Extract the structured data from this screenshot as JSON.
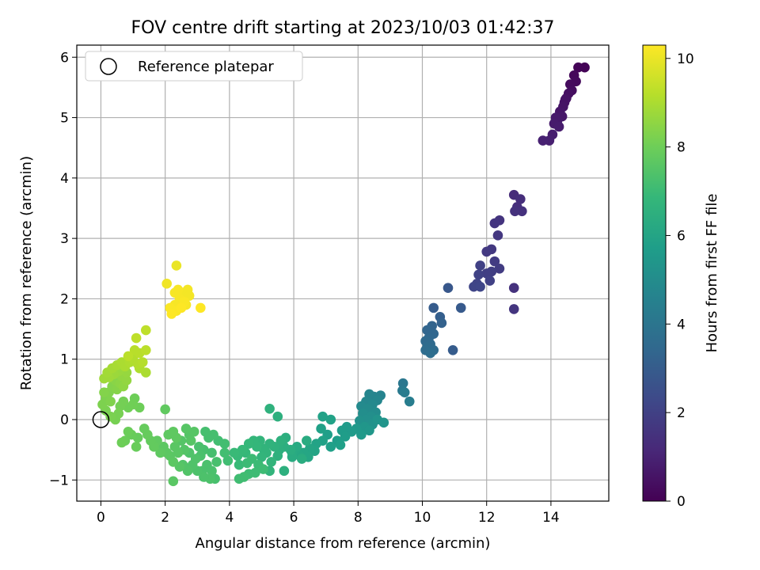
{
  "chart_data": {
    "type": "scatter",
    "title": "FOV centre drift starting at 2023/10/03 01:42:37",
    "xlabel": "Angular distance from reference (arcmin)",
    "ylabel": "Rotation from reference (arcmin)",
    "xlim": [
      -0.75,
      15.8
    ],
    "ylim": [
      -1.35,
      6.2
    ],
    "xticks": [
      0,
      2,
      4,
      6,
      8,
      10,
      12,
      14
    ],
    "yticks": [
      -1,
      0,
      1,
      2,
      3,
      4,
      5,
      6
    ],
    "xtick_labels": [
      "0",
      "2",
      "4",
      "6",
      "8",
      "10",
      "12",
      "14"
    ],
    "ytick_labels": [
      "−1",
      "0",
      "1",
      "2",
      "3",
      "4",
      "5",
      "6"
    ],
    "grid": true,
    "legend": {
      "placement": "upper-left",
      "entries": [
        "Reference platepar"
      ]
    },
    "reference_point": {
      "x": 0,
      "y": 0,
      "marker": "open-circle"
    },
    "colorbar": {
      "label": "Hours from first FF file",
      "min": 0,
      "max": 10.3,
      "ticks": [
        0,
        2,
        4,
        6,
        8,
        10
      ],
      "tick_labels": [
        "0",
        "2",
        "4",
        "6",
        "8",
        "10"
      ],
      "colormap": "viridis"
    },
    "colormap_stops": [
      "#440154",
      "#482878",
      "#3e4989",
      "#31688e",
      "#26828e",
      "#1f9e89",
      "#35b779",
      "#6ece58",
      "#b5de2b",
      "#fde725"
    ],
    "points": [
      [
        15.05,
        5.83,
        0.05
      ],
      [
        14.85,
        5.83,
        0.1
      ],
      [
        14.72,
        5.7,
        0.2
      ],
      [
        14.78,
        5.6,
        0.25
      ],
      [
        14.6,
        5.55,
        0.3
      ],
      [
        14.65,
        5.45,
        0.35
      ],
      [
        14.55,
        5.4,
        0.4
      ],
      [
        14.48,
        5.32,
        0.45
      ],
      [
        14.42,
        5.25,
        0.5
      ],
      [
        14.38,
        5.18,
        0.55
      ],
      [
        14.28,
        5.1,
        0.6
      ],
      [
        14.35,
        5.02,
        0.65
      ],
      [
        14.2,
        4.95,
        0.7
      ],
      [
        14.1,
        4.9,
        0.75
      ],
      [
        14.25,
        4.85,
        0.8
      ],
      [
        14.05,
        4.72,
        0.85
      ],
      [
        13.95,
        4.62,
        0.9
      ],
      [
        13.75,
        4.62,
        0.95
      ],
      [
        14.15,
        5.0,
        0.7
      ],
      [
        14.45,
        5.3,
        0.5
      ],
      [
        12.85,
        3.72,
        1.3
      ],
      [
        13.05,
        3.65,
        1.35
      ],
      [
        12.95,
        3.52,
        1.4
      ],
      [
        13.1,
        3.45,
        1.45
      ],
      [
        12.88,
        3.45,
        1.5
      ],
      [
        12.4,
        3.3,
        1.55
      ],
      [
        12.25,
        3.25,
        1.6
      ],
      [
        12.35,
        3.05,
        1.65
      ],
      [
        12.15,
        2.82,
        1.7
      ],
      [
        12.0,
        2.78,
        1.75
      ],
      [
        12.25,
        2.62,
        1.8
      ],
      [
        12.4,
        2.5,
        1.85
      ],
      [
        12.15,
        2.45,
        1.9
      ],
      [
        12.0,
        2.42,
        1.95
      ],
      [
        11.8,
        2.55,
        2.0
      ],
      [
        12.1,
        2.3,
        2.0
      ],
      [
        11.75,
        2.4,
        2.05
      ],
      [
        11.7,
        2.25,
        2.1
      ],
      [
        11.6,
        2.2,
        2.15
      ],
      [
        11.8,
        2.2,
        2.2
      ],
      [
        12.85,
        2.18,
        1.5
      ],
      [
        12.85,
        1.83,
        1.6
      ],
      [
        10.8,
        2.18,
        2.8
      ],
      [
        10.35,
        1.85,
        3.0
      ],
      [
        10.55,
        1.7,
        3.1
      ],
      [
        11.2,
        1.85,
        2.9
      ],
      [
        10.6,
        1.6,
        3.2
      ],
      [
        10.3,
        1.55,
        3.3
      ],
      [
        10.15,
        1.48,
        3.35
      ],
      [
        10.35,
        1.42,
        3.4
      ],
      [
        10.2,
        1.35,
        3.45
      ],
      [
        10.1,
        1.3,
        3.5
      ],
      [
        10.25,
        1.25,
        3.55
      ],
      [
        10.15,
        1.2,
        3.6
      ],
      [
        10.35,
        1.15,
        3.6
      ],
      [
        10.1,
        1.15,
        3.65
      ],
      [
        10.95,
        1.15,
        3.0
      ],
      [
        10.25,
        1.1,
        3.7
      ],
      [
        9.4,
        0.6,
        4.1
      ],
      [
        9.38,
        0.48,
        4.2
      ],
      [
        9.45,
        0.45,
        4.3
      ],
      [
        9.6,
        0.3,
        4.35
      ],
      [
        8.7,
        0.4,
        4.6
      ],
      [
        8.5,
        0.38,
        4.65
      ],
      [
        8.35,
        0.42,
        4.7
      ],
      [
        8.6,
        0.32,
        4.75
      ],
      [
        8.25,
        0.3,
        4.8
      ],
      [
        8.45,
        0.25,
        4.85
      ],
      [
        8.1,
        0.22,
        4.9
      ],
      [
        8.3,
        0.18,
        4.95
      ],
      [
        8.55,
        0.12,
        5.0
      ],
      [
        8.15,
        0.1,
        5.05
      ],
      [
        8.4,
        0.05,
        5.1
      ],
      [
        8.25,
        0.0,
        5.15
      ],
      [
        8.05,
        -0.02,
        5.2
      ],
      [
        8.45,
        -0.08,
        5.25
      ],
      [
        8.6,
        0.0,
        5.3
      ],
      [
        8.8,
        -0.05,
        5.35
      ],
      [
        8.2,
        -0.12,
        5.4
      ],
      [
        8.35,
        -0.18,
        5.45
      ],
      [
        7.95,
        -0.15,
        5.5
      ],
      [
        8.1,
        -0.25,
        5.55
      ],
      [
        7.8,
        -0.2,
        5.6
      ],
      [
        7.65,
        -0.12,
        5.6
      ],
      [
        7.5,
        -0.18,
        5.65
      ],
      [
        7.6,
        -0.28,
        5.7
      ],
      [
        7.35,
        -0.35,
        5.7
      ],
      [
        7.05,
        -0.25,
        5.75
      ],
      [
        7.15,
        -0.45,
        5.8
      ],
      [
        7.45,
        -0.42,
        5.8
      ],
      [
        6.9,
        -0.35,
        5.85
      ],
      [
        6.85,
        -0.15,
        5.85
      ],
      [
        6.9,
        0.05,
        5.9
      ],
      [
        7.15,
        0.0,
        5.9
      ],
      [
        6.7,
        -0.4,
        5.95
      ],
      [
        6.65,
        -0.52,
        6.0
      ],
      [
        6.5,
        -0.48,
        6.05
      ],
      [
        6.45,
        -0.62,
        6.1
      ],
      [
        6.3,
        -0.55,
        6.1
      ],
      [
        6.2,
        -0.6,
        6.15
      ],
      [
        6.05,
        -0.5,
        6.2
      ],
      [
        5.95,
        -0.55,
        6.25
      ],
      [
        6.1,
        -0.45,
        6.25
      ],
      [
        5.95,
        -0.62,
        6.3
      ],
      [
        6.4,
        -0.35,
        6.3
      ],
      [
        6.25,
        -0.65,
        6.35
      ],
      [
        5.9,
        -0.5,
        6.4
      ],
      [
        5.7,
        -0.45,
        6.45
      ],
      [
        5.55,
        -0.5,
        6.5
      ],
      [
        5.6,
        -0.35,
        6.55
      ],
      [
        5.5,
        -0.6,
        6.55
      ],
      [
        5.4,
        -0.45,
        6.6
      ],
      [
        5.25,
        -0.4,
        6.65
      ],
      [
        5.15,
        -0.55,
        6.7
      ],
      [
        5.05,
        -0.48,
        6.7
      ],
      [
        5.3,
        -0.7,
        6.75
      ],
      [
        5.0,
        -0.62,
        6.75
      ],
      [
        4.85,
        -0.45,
        6.8
      ],
      [
        4.75,
        -0.35,
        6.8
      ],
      [
        4.6,
        -0.4,
        6.85
      ],
      [
        4.5,
        -0.55,
        6.85
      ],
      [
        4.4,
        -0.5,
        6.9
      ],
      [
        4.25,
        -0.6,
        6.9
      ],
      [
        4.15,
        -0.55,
        6.95
      ],
      [
        4.3,
        -0.75,
        6.95
      ],
      [
        4.55,
        -0.72,
        7.0
      ],
      [
        4.7,
        -0.65,
        7.0
      ],
      [
        4.9,
        -0.75,
        7.0
      ],
      [
        5.05,
        -0.82,
        7.05
      ],
      [
        4.8,
        -0.88,
        7.05
      ],
      [
        4.6,
        -0.9,
        7.05
      ],
      [
        4.45,
        -0.95,
        7.1
      ],
      [
        4.3,
        -0.98,
        7.1
      ],
      [
        5.5,
        0.05,
        6.5
      ],
      [
        5.25,
        0.18,
        6.6
      ],
      [
        5.7,
        -0.85,
        6.5
      ],
      [
        5.25,
        -0.85,
        6.7
      ],
      [
        5.75,
        -0.3,
        6.45
      ],
      [
        4.95,
        -0.35,
        6.75
      ],
      [
        3.95,
        -0.68,
        7.1
      ],
      [
        3.85,
        -0.4,
        7.15
      ],
      [
        3.65,
        -0.35,
        7.15
      ],
      [
        3.5,
        -0.25,
        7.2
      ],
      [
        3.35,
        -0.3,
        7.2
      ],
      [
        3.45,
        -0.55,
        7.2
      ],
      [
        3.6,
        -0.7,
        7.25
      ],
      [
        3.2,
        -0.5,
        7.25
      ],
      [
        3.05,
        -0.45,
        7.3
      ],
      [
        3.3,
        -0.75,
        7.3
      ],
      [
        3.15,
        -0.85,
        7.3
      ],
      [
        3.45,
        -0.85,
        7.3
      ],
      [
        3.4,
        -0.98,
        7.35
      ],
      [
        3.2,
        -0.95,
        7.35
      ],
      [
        3.0,
        -0.85,
        7.35
      ],
      [
        2.85,
        -0.75,
        7.4
      ],
      [
        2.95,
        -0.65,
        7.4
      ],
      [
        2.75,
        -0.55,
        7.4
      ],
      [
        2.7,
        -0.85,
        7.45
      ],
      [
        2.55,
        -0.75,
        7.45
      ],
      [
        2.6,
        -0.5,
        7.5
      ],
      [
        2.5,
        -0.35,
        7.5
      ],
      [
        2.75,
        -0.25,
        7.5
      ],
      [
        2.8,
        -0.35,
        7.55
      ],
      [
        2.9,
        -0.2,
        7.55
      ],
      [
        2.65,
        -0.15,
        7.55
      ],
      [
        2.4,
        -0.55,
        7.6
      ],
      [
        2.3,
        -0.45,
        7.6
      ],
      [
        2.15,
        -0.6,
        7.6
      ],
      [
        2.25,
        -0.7,
        7.65
      ],
      [
        2.05,
        -0.55,
        7.65
      ],
      [
        1.95,
        -0.45,
        7.65
      ],
      [
        1.85,
        -0.55,
        7.7
      ],
      [
        2.1,
        -0.25,
        7.7
      ],
      [
        2.25,
        -0.2,
        7.7
      ],
      [
        2.35,
        -0.3,
        7.7
      ],
      [
        2.0,
        0.17,
        7.75
      ],
      [
        1.75,
        -0.35,
        7.75
      ],
      [
        1.65,
        -0.45,
        7.8
      ],
      [
        1.55,
        -0.35,
        7.8
      ],
      [
        1.45,
        -0.25,
        7.85
      ],
      [
        1.35,
        -0.15,
        7.85
      ],
      [
        1.15,
        -0.3,
        7.85
      ],
      [
        1.1,
        -0.45,
        7.9
      ],
      [
        0.95,
        -0.25,
        7.9
      ],
      [
        0.85,
        -0.2,
        7.95
      ],
      [
        0.75,
        -0.35,
        7.95
      ],
      [
        0.65,
        -0.38,
        8.0
      ],
      [
        2.25,
        -1.02,
        7.6
      ],
      [
        2.45,
        -0.78,
        7.55
      ],
      [
        3.55,
        -0.98,
        7.25
      ],
      [
        3.1,
        -0.6,
        7.3
      ],
      [
        3.85,
        -0.55,
        7.15
      ],
      [
        3.25,
        -0.2,
        7.2
      ],
      [
        1.05,
        0.35,
        8.0
      ],
      [
        1.2,
        0.2,
        8.0
      ],
      [
        1.0,
        0.25,
        8.05
      ],
      [
        0.85,
        0.2,
        8.05
      ],
      [
        0.7,
        0.3,
        8.1
      ],
      [
        0.6,
        0.22,
        8.1
      ],
      [
        0.55,
        0.1,
        8.15
      ],
      [
        0.45,
        0.0,
        8.15
      ],
      [
        0.3,
        0.05,
        8.2
      ],
      [
        0.15,
        0.15,
        8.2
      ],
      [
        0.05,
        0.25,
        8.25
      ],
      [
        0.15,
        0.35,
        8.25
      ],
      [
        0.3,
        0.3,
        8.3
      ],
      [
        0.25,
        0.45,
        8.3
      ],
      [
        0.1,
        0.45,
        8.35
      ],
      [
        0.35,
        0.55,
        8.35
      ],
      [
        0.5,
        0.5,
        8.4
      ],
      [
        0.45,
        0.65,
        8.45
      ],
      [
        0.6,
        0.6,
        8.5
      ],
      [
        0.7,
        0.55,
        8.55
      ],
      [
        0.65,
        0.72,
        8.6
      ],
      [
        0.8,
        0.78,
        8.65
      ],
      [
        0.55,
        0.8,
        8.7
      ],
      [
        0.4,
        0.75,
        8.75
      ],
      [
        0.25,
        0.7,
        8.8
      ],
      [
        0.1,
        0.68,
        8.8
      ],
      [
        0.2,
        0.78,
        8.85
      ],
      [
        0.35,
        0.85,
        8.9
      ],
      [
        0.5,
        0.9,
        8.95
      ],
      [
        0.65,
        0.95,
        9.0
      ],
      [
        0.75,
        0.88,
        9.0
      ],
      [
        0.9,
        0.95,
        9.05
      ],
      [
        1.0,
        1.0,
        9.1
      ],
      [
        1.15,
        0.92,
        9.1
      ],
      [
        1.3,
        0.95,
        9.15
      ],
      [
        1.2,
        1.1,
        9.2
      ],
      [
        1.05,
        1.15,
        9.2
      ],
      [
        0.85,
        1.05,
        9.25
      ],
      [
        1.4,
        1.15,
        9.25
      ],
      [
        1.1,
        1.35,
        9.3
      ],
      [
        1.4,
        1.48,
        9.3
      ],
      [
        1.4,
        0.78,
        9.0
      ],
      [
        1.2,
        0.85,
        9.05
      ],
      [
        0.8,
        0.65,
        8.6
      ],
      [
        2.35,
        2.55,
        10.0
      ],
      [
        2.05,
        2.25,
        10.1
      ],
      [
        2.55,
        2.1,
        10.15
      ],
      [
        2.3,
        2.1,
        10.2
      ],
      [
        2.7,
        2.15,
        10.15
      ],
      [
        2.45,
        2.0,
        10.2
      ],
      [
        2.6,
        1.95,
        10.25
      ],
      [
        2.3,
        1.9,
        10.2
      ],
      [
        2.15,
        1.85,
        10.25
      ],
      [
        2.5,
        1.85,
        10.3
      ],
      [
        2.35,
        1.8,
        10.25
      ],
      [
        2.2,
        1.75,
        10.3
      ],
      [
        2.65,
        1.9,
        10.2
      ],
      [
        3.1,
        1.85,
        10.3
      ],
      [
        2.4,
        2.15,
        10.2
      ],
      [
        2.75,
        2.05,
        10.15
      ]
    ]
  }
}
